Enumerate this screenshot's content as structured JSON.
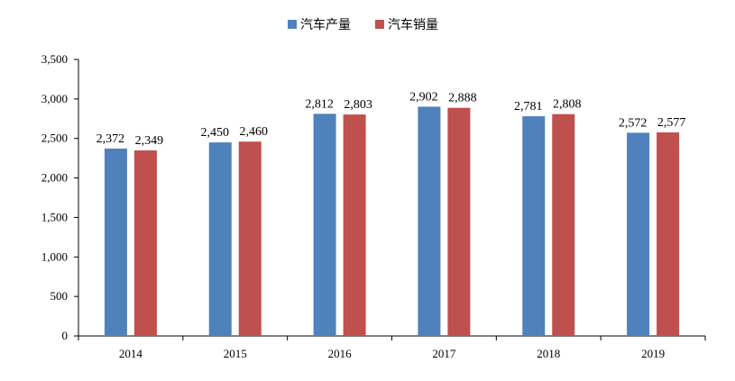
{
  "chart_data": {
    "type": "bar",
    "categories": [
      "2014",
      "2015",
      "2016",
      "2017",
      "2018",
      "2019"
    ],
    "series": [
      {
        "name": "汽车产量",
        "values": [
          2372,
          2450,
          2812,
          2902,
          2781,
          2572
        ],
        "labels": [
          "2,372",
          "2,450",
          "2,812",
          "2,902",
          "2,781",
          "2,572"
        ],
        "color": "#4F81BD"
      },
      {
        "name": "汽车销量",
        "values": [
          2349,
          2460,
          2803,
          2888,
          2808,
          2577
        ],
        "labels": [
          "2,349",
          "2,460",
          "2,803",
          "2,888",
          "2,808",
          "2,577"
        ],
        "color": "#C0504D"
      }
    ],
    "yticks": [
      "0",
      "500",
      "1,000",
      "1,500",
      "2,000",
      "2,500",
      "3,000",
      "3,500"
    ],
    "ylim": [
      0,
      3500
    ],
    "legend_position": "top-center",
    "grid": false
  }
}
